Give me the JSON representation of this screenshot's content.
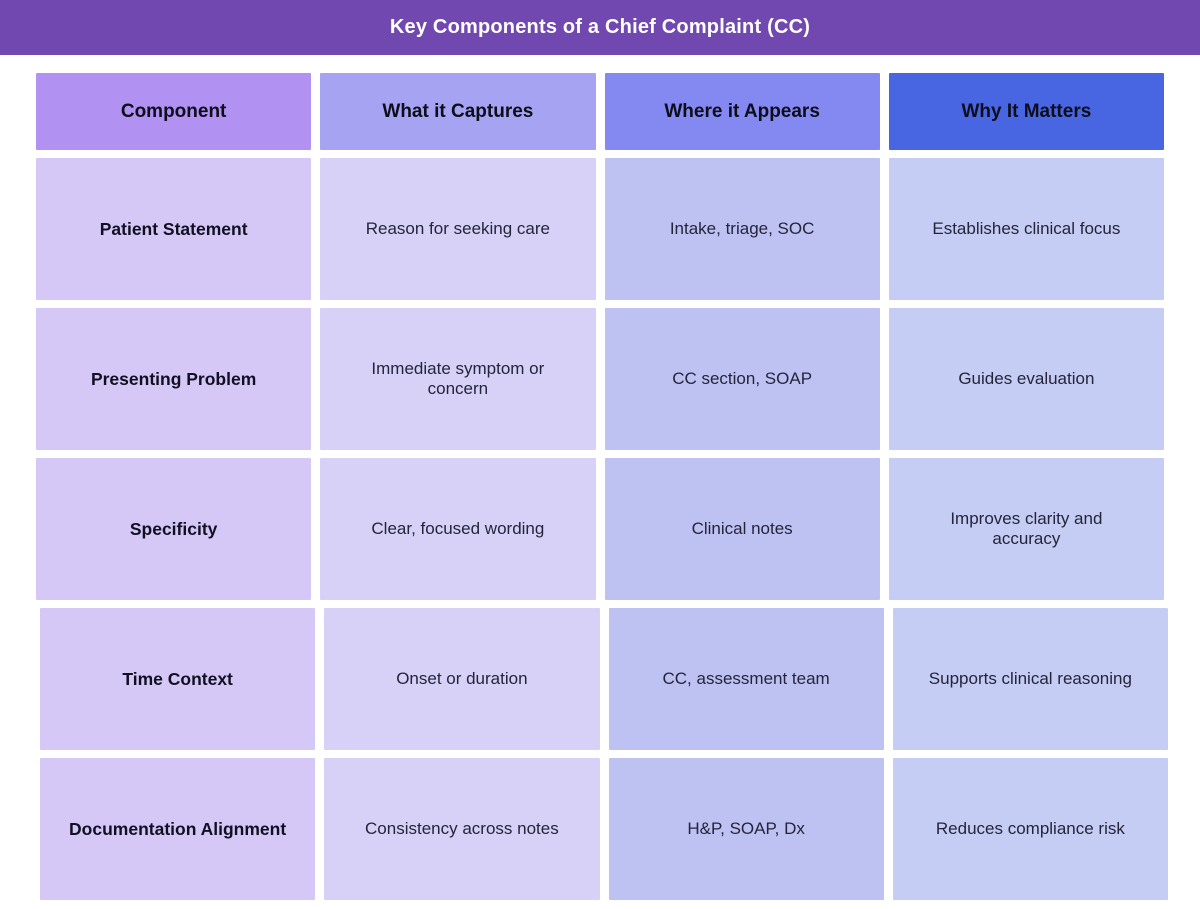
{
  "title": "Key Components of a Chief Complaint (CC)",
  "colors": {
    "title_bar_bg": "#7148b0",
    "title_text": "#ffffff",
    "header_bgs": [
      "#b192f3",
      "#a6a3f2",
      "#8389f0",
      "#4866e2"
    ],
    "body_column_bgs": [
      "#d6c8f6",
      "#d7d1f8",
      "#bec2f3",
      "#c6cdf5"
    ],
    "body_text": "#24243a",
    "page_bg": "#ffffff"
  },
  "chart_data": {
    "type": "table",
    "title": "Key Components of a Chief Complaint (CC)",
    "columns": [
      "Component",
      "What it Captures",
      "Where it Appears",
      "Why It Matters"
    ],
    "rows": [
      [
        "Patient Statement",
        "Reason for seeking care",
        "Intake, triage, SOC",
        "Establishes clinical focus"
      ],
      [
        "Presenting Problem",
        "Immediate symptom or concern",
        "CC section, SOAP",
        "Guides evaluation"
      ],
      [
        "Specificity",
        "Clear, focused wording",
        "Clinical notes",
        "Improves clarity and accuracy"
      ],
      [
        "Time Context",
        "Onset or duration",
        "CC, assessment team",
        "Supports clinical reasoning"
      ],
      [
        "Documentation Alignment",
        "Consistency across notes",
        "H&P, SOAP, Dx",
        "Reduces compliance risk"
      ]
    ]
  },
  "table": {
    "headers": [
      {
        "label": "Component"
      },
      {
        "label": "What it Captures"
      },
      {
        "label": "Where it Appears"
      },
      {
        "label": "Why It Matters"
      }
    ],
    "rows": [
      {
        "component": "Patient Statement",
        "captures": "Reason for seeking care",
        "appears": "Intake, triage, SOC",
        "matters": "Establishes clinical focus"
      },
      {
        "component": "Presenting Problem",
        "captures": "Immediate symptom or concern",
        "appears": "CC section, SOAP",
        "matters": "Guides evaluation"
      },
      {
        "component": "Specificity",
        "captures": "Clear, focused wording",
        "appears": "Clinical notes",
        "matters": "Improves clarity and accuracy"
      },
      {
        "component": "Time Context",
        "captures": "Onset or duration",
        "appears": "CC, assessment team",
        "matters": "Supports clinical reasoning"
      },
      {
        "component": "Documentation Alignment",
        "captures": "Consistency across notes",
        "appears": "H&P, SOAP, Dx",
        "matters": "Reduces compliance risk"
      }
    ]
  }
}
